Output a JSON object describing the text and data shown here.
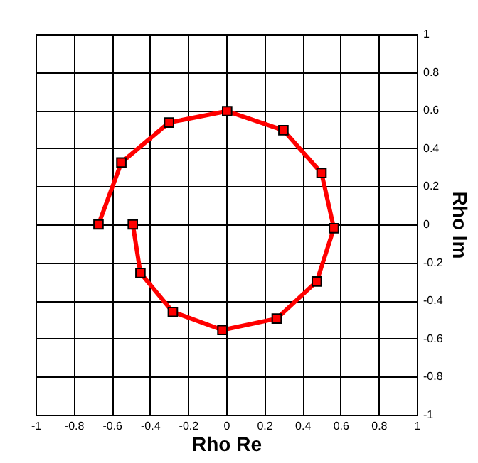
{
  "chart_data": {
    "type": "line",
    "xlabel": "Rho Re",
    "ylabel": "Rho Im",
    "x": [
      -0.67,
      -0.55,
      -0.3,
      0.005,
      0.3,
      0.5,
      0.565,
      0.475,
      0.265,
      -0.02,
      -0.28,
      -0.45,
      -0.49
    ],
    "series": [
      {
        "color": "#ff0000",
        "values": [
          0,
          0.325,
          0.535,
          0.595,
          0.495,
          0.27,
          -0.02,
          -0.3,
          -0.495,
          -0.555,
          -0.46,
          -0.255,
          0
        ]
      }
    ],
    "xlim": [
      -1,
      1
    ],
    "ylim": [
      -1,
      1
    ],
    "xticks": [
      -1,
      -0.8,
      -0.6,
      -0.4,
      -0.2,
      0,
      0.2,
      0.4,
      0.6,
      0.8,
      1
    ],
    "yticks": [
      -1,
      -0.8,
      -0.6,
      -0.4,
      -0.2,
      0,
      0.2,
      0.4,
      0.6,
      0.8,
      1
    ],
    "grid": true,
    "marker": "square",
    "line_style": "solid"
  }
}
